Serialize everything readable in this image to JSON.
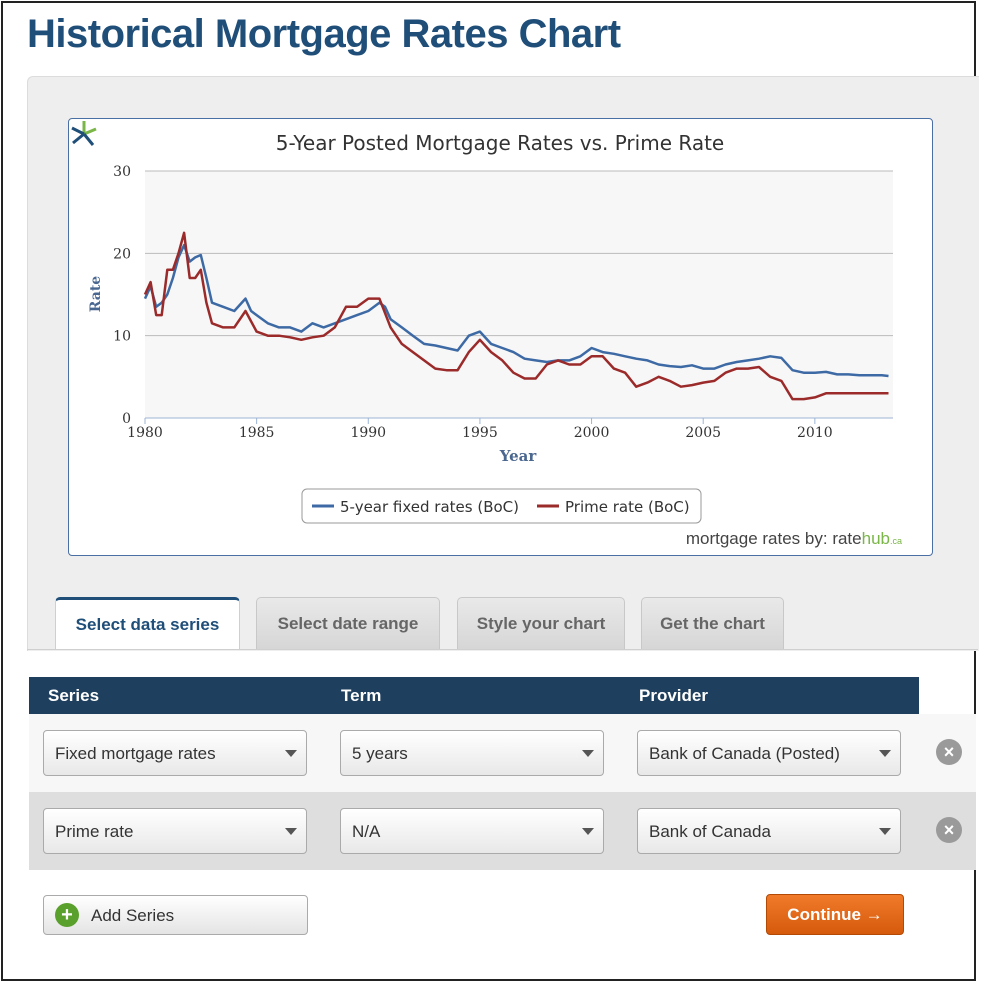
{
  "page": {
    "title": "Historical Mortgage Rates Chart"
  },
  "credit": {
    "prefix": "mortgage rates by: ",
    "brand_a": "rate",
    "brand_b": "hub",
    "brand_c": ".ca"
  },
  "chart_data": {
    "type": "line",
    "title": "5-Year Posted Mortgage Rates vs. Prime Rate",
    "xlabel": "Year",
    "ylabel": "Rate",
    "xlim": [
      1980,
      2013.5
    ],
    "ylim": [
      0,
      30
    ],
    "xticks": [
      1980,
      1985,
      1990,
      1995,
      2000,
      2005,
      2010
    ],
    "yticks": [
      0,
      10,
      20,
      30
    ],
    "grid": true,
    "legend_position": "bottom-center",
    "series": [
      {
        "name": "5-year fixed rates (BoC)",
        "color": "#3d6aa4",
        "points": [
          [
            1980,
            14.5
          ],
          [
            1980.25,
            16
          ],
          [
            1980.5,
            13.5
          ],
          [
            1980.75,
            14
          ],
          [
            1981,
            15
          ],
          [
            1981.25,
            17
          ],
          [
            1981.5,
            19.5
          ],
          [
            1981.75,
            21
          ],
          [
            1982,
            19
          ],
          [
            1982.25,
            19.5
          ],
          [
            1982.5,
            19.8
          ],
          [
            1982.75,
            17
          ],
          [
            1983,
            14
          ],
          [
            1983.5,
            13.5
          ],
          [
            1984,
            13
          ],
          [
            1984.5,
            14.5
          ],
          [
            1984.75,
            13
          ],
          [
            1985,
            12.5
          ],
          [
            1985.5,
            11.5
          ],
          [
            1986,
            11
          ],
          [
            1986.5,
            11
          ],
          [
            1987,
            10.5
          ],
          [
            1987.5,
            11.5
          ],
          [
            1988,
            11
          ],
          [
            1988.5,
            11.5
          ],
          [
            1989,
            12
          ],
          [
            1989.5,
            12.5
          ],
          [
            1990,
            13
          ],
          [
            1990.5,
            14
          ],
          [
            1990.75,
            13.5
          ],
          [
            1991,
            12
          ],
          [
            1991.5,
            11
          ],
          [
            1992,
            10
          ],
          [
            1992.5,
            9
          ],
          [
            1993,
            8.8
          ],
          [
            1993.5,
            8.5
          ],
          [
            1994,
            8.2
          ],
          [
            1994.5,
            10
          ],
          [
            1995,
            10.5
          ],
          [
            1995.5,
            9
          ],
          [
            1996,
            8.5
          ],
          [
            1996.5,
            8
          ],
          [
            1997,
            7.2
          ],
          [
            1997.5,
            7
          ],
          [
            1998,
            6.8
          ],
          [
            1998.5,
            7
          ],
          [
            1999,
            7
          ],
          [
            1999.5,
            7.5
          ],
          [
            2000,
            8.5
          ],
          [
            2000.5,
            8
          ],
          [
            2001,
            7.8
          ],
          [
            2001.5,
            7.5
          ],
          [
            2002,
            7.2
          ],
          [
            2002.5,
            7
          ],
          [
            2003,
            6.5
          ],
          [
            2003.5,
            6.3
          ],
          [
            2004,
            6.2
          ],
          [
            2004.5,
            6.4
          ],
          [
            2005,
            6
          ],
          [
            2005.5,
            6
          ],
          [
            2006,
            6.5
          ],
          [
            2006.5,
            6.8
          ],
          [
            2007,
            7
          ],
          [
            2007.5,
            7.2
          ],
          [
            2008,
            7.5
          ],
          [
            2008.5,
            7.3
          ],
          [
            2009,
            5.8
          ],
          [
            2009.5,
            5.5
          ],
          [
            2010,
            5.5
          ],
          [
            2010.5,
            5.6
          ],
          [
            2011,
            5.3
          ],
          [
            2011.5,
            5.3
          ],
          [
            2012,
            5.2
          ],
          [
            2012.5,
            5.2
          ],
          [
            2013,
            5.2
          ],
          [
            2013.3,
            5.1
          ]
        ]
      },
      {
        "name": "Prime rate (BoC)",
        "color": "#9b2a2a",
        "points": [
          [
            1980,
            15
          ],
          [
            1980.25,
            16.5
          ],
          [
            1980.5,
            12.5
          ],
          [
            1980.75,
            12.5
          ],
          [
            1981,
            18
          ],
          [
            1981.25,
            18
          ],
          [
            1981.5,
            20
          ],
          [
            1981.75,
            22.5
          ],
          [
            1982,
            17
          ],
          [
            1982.25,
            17
          ],
          [
            1982.5,
            18
          ],
          [
            1982.75,
            14
          ],
          [
            1983,
            11.5
          ],
          [
            1983.5,
            11
          ],
          [
            1984,
            11
          ],
          [
            1984.5,
            13
          ],
          [
            1985,
            10.5
          ],
          [
            1985.5,
            10
          ],
          [
            1986,
            10
          ],
          [
            1986.5,
            9.8
          ],
          [
            1987,
            9.5
          ],
          [
            1987.5,
            9.8
          ],
          [
            1988,
            10
          ],
          [
            1988.5,
            11
          ],
          [
            1989,
            13.5
          ],
          [
            1989.5,
            13.5
          ],
          [
            1990,
            14.5
          ],
          [
            1990.5,
            14.5
          ],
          [
            1991,
            11
          ],
          [
            1991.5,
            9
          ],
          [
            1992,
            8
          ],
          [
            1992.5,
            7
          ],
          [
            1993,
            6
          ],
          [
            1993.5,
            5.8
          ],
          [
            1994,
            5.8
          ],
          [
            1994.5,
            8
          ],
          [
            1995,
            9.5
          ],
          [
            1995.5,
            8
          ],
          [
            1996,
            7
          ],
          [
            1996.5,
            5.5
          ],
          [
            1997,
            4.8
          ],
          [
            1997.5,
            4.8
          ],
          [
            1998,
            6.5
          ],
          [
            1998.5,
            7
          ],
          [
            1999,
            6.5
          ],
          [
            1999.5,
            6.5
          ],
          [
            2000,
            7.5
          ],
          [
            2000.5,
            7.5
          ],
          [
            2001,
            6
          ],
          [
            2001.5,
            5.5
          ],
          [
            2002,
            3.8
          ],
          [
            2002.5,
            4.3
          ],
          [
            2003,
            5
          ],
          [
            2003.5,
            4.5
          ],
          [
            2004,
            3.8
          ],
          [
            2004.5,
            4
          ],
          [
            2005,
            4.3
          ],
          [
            2005.5,
            4.5
          ],
          [
            2006,
            5.5
          ],
          [
            2006.5,
            6
          ],
          [
            2007,
            6
          ],
          [
            2007.5,
            6.2
          ],
          [
            2008,
            5
          ],
          [
            2008.5,
            4.5
          ],
          [
            2009,
            2.3
          ],
          [
            2009.5,
            2.3
          ],
          [
            2010,
            2.5
          ],
          [
            2010.5,
            3
          ],
          [
            2011,
            3
          ],
          [
            2011.5,
            3
          ],
          [
            2012,
            3
          ],
          [
            2012.5,
            3
          ],
          [
            2013,
            3
          ],
          [
            2013.3,
            3
          ]
        ]
      }
    ]
  },
  "tabs": [
    {
      "label": "Select data series",
      "active": true
    },
    {
      "label": "Select date range",
      "active": false
    },
    {
      "label": "Style your chart",
      "active": false
    },
    {
      "label": "Get the chart",
      "active": false
    }
  ],
  "table": {
    "headers": {
      "series": "Series",
      "term": "Term",
      "provider": "Provider"
    },
    "rows": [
      {
        "series": "Fixed mortgage rates",
        "term": "5 years",
        "provider": "Bank of Canada (Posted)"
      },
      {
        "series": "Prime rate",
        "term": "N/A",
        "provider": "Bank of Canada"
      }
    ]
  },
  "buttons": {
    "add_series": "Add Series",
    "continue": "Continue →"
  }
}
